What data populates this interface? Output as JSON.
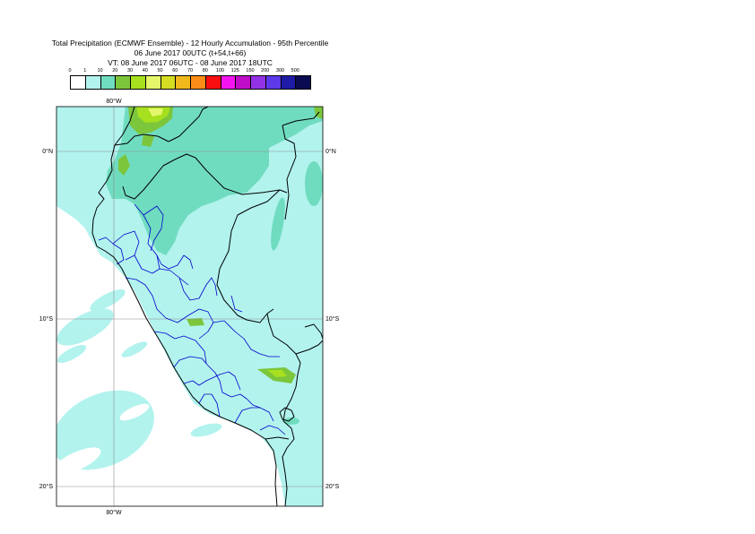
{
  "title": {
    "line1": "Total Precipitation (ECMWF Ensemble) - 12 Hourly Accumulation - 95th Percentile",
    "line2": "06 June 2017 00UTC (t+54,t+66)",
    "line3": "VT: 08 June 2017 06UTC - 08 June 2017 18UTC"
  },
  "legend": {
    "labels": [
      "0",
      "1",
      "10",
      "20",
      "30",
      "40",
      "50",
      "60",
      "70",
      "80",
      "100",
      "125",
      "150",
      "200",
      "300",
      "500"
    ],
    "colors": [
      "#ffffff",
      "#b2f3ee",
      "#70dcbf",
      "#7cc63c",
      "#a7e01e",
      "#e4f76b",
      "#d4dd21",
      "#f0b81a",
      "#fb8c17",
      "#f90f0f",
      "#f414f0",
      "#c00ec8",
      "#9232e6",
      "#5d39ea",
      "#1e1ca6",
      "#0b0b52"
    ]
  },
  "axes": {
    "top_lon_label": "80°W",
    "bottom_lon_label": "80°W",
    "lat_left": [
      "0°N",
      "10°S",
      "20°S"
    ],
    "lat_right": [
      "0°N",
      "10°S",
      "20°S"
    ]
  },
  "map_colors": {
    "ocean": "#ffffff",
    "light": "#b2f3ee",
    "medium": "#70dcbf",
    "green": "#7cc63c",
    "yellowgreen": "#a7e01e",
    "yellow": "#e4f76b",
    "border": "#000000",
    "admin": "#0000cc",
    "grid": "#8c8c8c"
  }
}
